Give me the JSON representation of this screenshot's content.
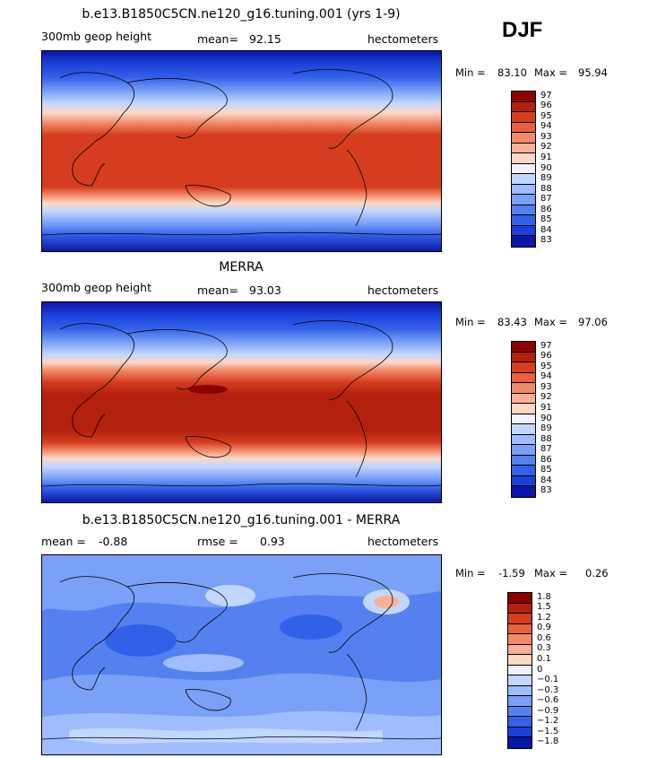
{
  "season": "DJF",
  "chart_data": [
    {
      "type": "heatmap",
      "title": "b.e13.B1850C5CN.ne120_g16.tuning.001 (yrs 1-9)",
      "variable": "300mb geop height",
      "stat_label": "mean=",
      "stat_value": "92.15",
      "units": "hectometers",
      "min_label": "Min =",
      "min_value": "83.10",
      "max_label": "Max =",
      "max_value": "95.94",
      "levels": [
        "97",
        "96",
        "95",
        "94",
        "93",
        "92",
        "91",
        "90",
        "89",
        "88",
        "87",
        "86",
        "85",
        "84",
        "83"
      ],
      "colors": [
        "#8b0000",
        "#b3200e",
        "#d63d1f",
        "#e8603d",
        "#f08a68",
        "#f8b198",
        "#fbd7c6",
        "#f2f2ff",
        "#c2d7ff",
        "#9fbcff",
        "#7aa0f7",
        "#5580ef",
        "#3360e8",
        "#1c3fd9",
        "#0a17a6"
      ]
    },
    {
      "type": "heatmap",
      "title": "MERRA",
      "variable": "300mb geop height",
      "stat_label": "mean=",
      "stat_value": "93.03",
      "units": "hectometers",
      "min_label": "Min =",
      "min_value": "83.43",
      "max_label": "Max =",
      "max_value": "97.06",
      "levels": [
        "97",
        "96",
        "95",
        "94",
        "93",
        "92",
        "91",
        "90",
        "89",
        "88",
        "87",
        "86",
        "85",
        "84",
        "83"
      ],
      "colors": [
        "#8b0000",
        "#b3200e",
        "#d63d1f",
        "#e8603d",
        "#f08a68",
        "#f8b198",
        "#fbd7c6",
        "#f2f2ff",
        "#c2d7ff",
        "#9fbcff",
        "#7aa0f7",
        "#5580ef",
        "#3360e8",
        "#1c3fd9",
        "#0a17a6"
      ]
    },
    {
      "type": "heatmap",
      "title": "b.e13.B1850C5CN.ne120_g16.tuning.001 - MERRA",
      "stat1_label": "mean =",
      "stat1_value": "-0.88",
      "stat2_label": "rmse =",
      "stat2_value": "0.93",
      "units": "hectometers",
      "min_label": "Min =",
      "min_value": "-1.59",
      "max_label": "Max =",
      "max_value": "0.26",
      "levels": [
        "1.8",
        "1.5",
        "1.2",
        "0.9",
        "0.6",
        "0.3",
        "0.1",
        "0",
        "−0.1",
        "−0.3",
        "−0.6",
        "−0.9",
        "−1.2",
        "−1.5",
        "−1.8"
      ],
      "colors": [
        "#8b0000",
        "#b3200e",
        "#d63d1f",
        "#e8603d",
        "#f08a68",
        "#f8b198",
        "#fbd7c6",
        "#f2f2ff",
        "#c2d7ff",
        "#9fbcff",
        "#7aa0f7",
        "#5580ef",
        "#3360e8",
        "#1c3fd9",
        "#0a17a6"
      ]
    }
  ]
}
